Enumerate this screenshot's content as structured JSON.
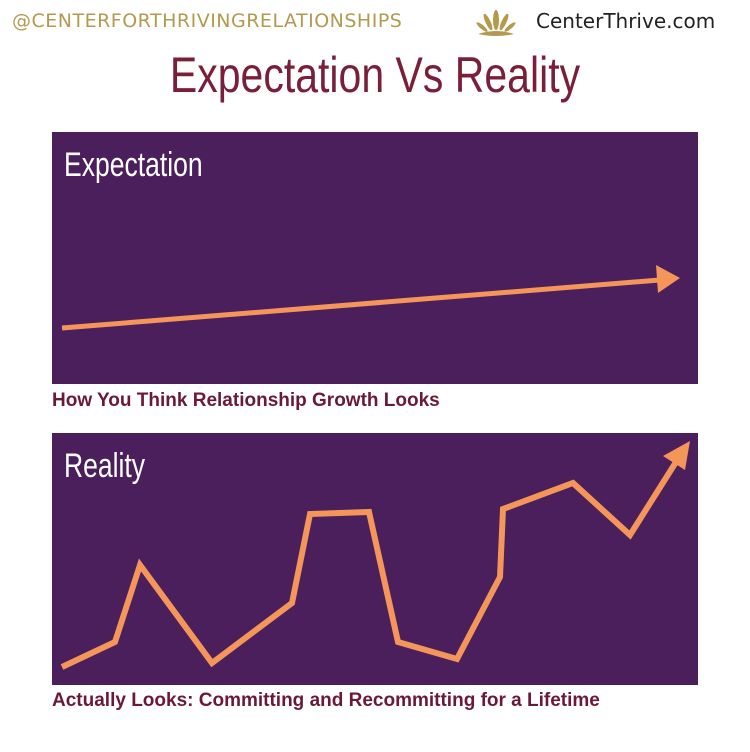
{
  "header": {
    "handle": "@CENTERFORTHRIVINGRELATIONSHIPS",
    "site": "CenterThrive.com",
    "logo_icon": "lotus-icon"
  },
  "title": "Expectation Vs Reality",
  "expectation": {
    "label": "Expectation",
    "caption": "How You Think Relationship Growth Looks"
  },
  "reality": {
    "label": "Reality",
    "caption": "Actually Looks: Committing and Recommitting for a Lifetime"
  },
  "colors": {
    "panel": "#4a1f5c",
    "line": "#f4955a",
    "title": "#7a1f3a",
    "handle": "#b39a4e"
  }
}
